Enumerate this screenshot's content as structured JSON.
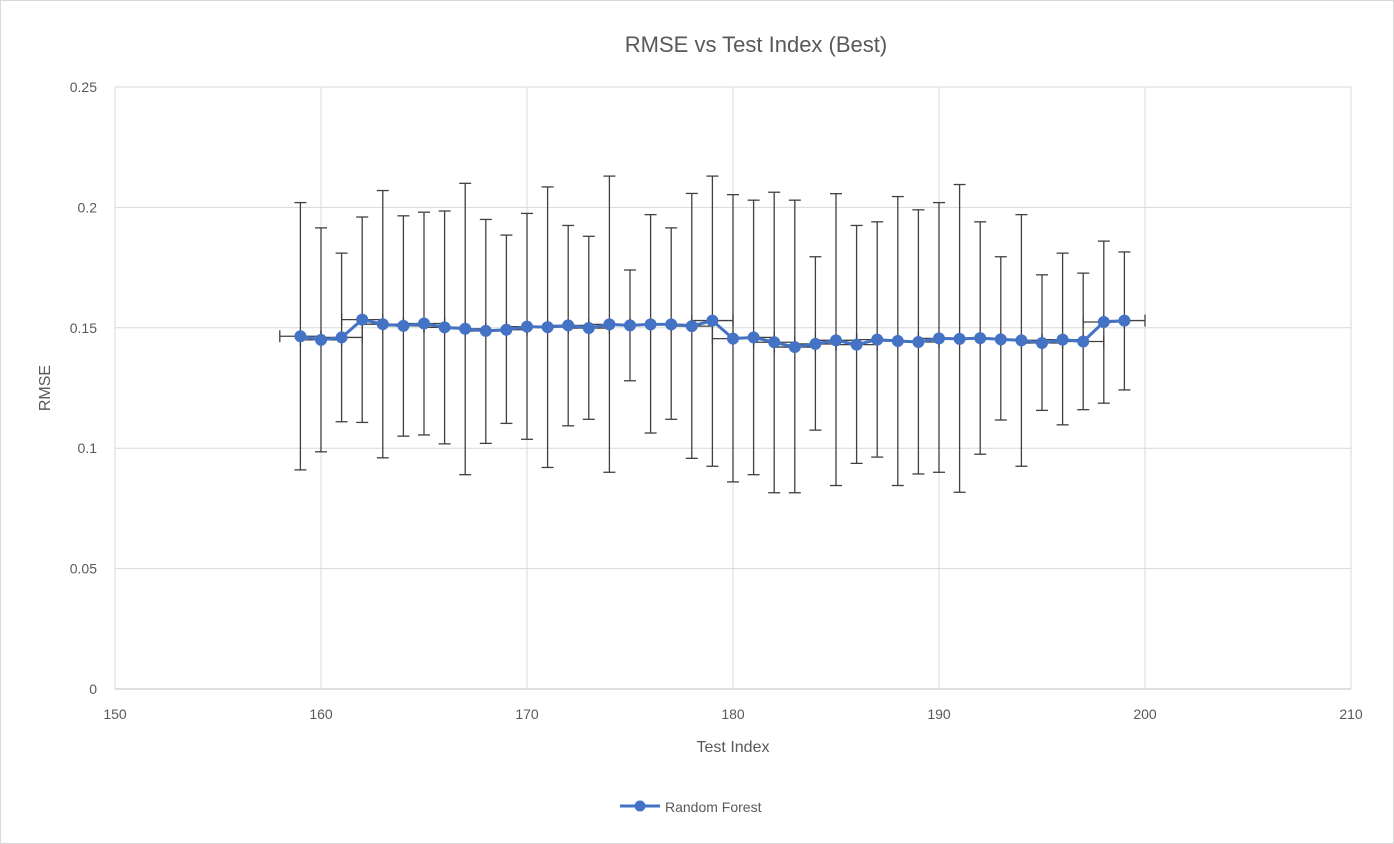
{
  "chart_data": {
    "type": "scatter",
    "title": "RMSE vs Test Index (Best)",
    "xlabel": "Test Index",
    "ylabel": "RMSE",
    "xlim": [
      150,
      210
    ],
    "ylim": [
      0,
      0.25
    ],
    "x_ticks": [
      150,
      160,
      170,
      180,
      190,
      200,
      210
    ],
    "x_tick_labels": [
      "150",
      "160",
      "170",
      "180",
      "190",
      "200",
      "210"
    ],
    "y_ticks": [
      0,
      0.05,
      0.1,
      0.15,
      0.2,
      0.25
    ],
    "y_tick_labels": [
      "0",
      "0.05",
      "0.1",
      "0.15",
      "0.2",
      "0.25"
    ],
    "grid": true,
    "legend_position": "bottom",
    "series": [
      {
        "name": "Random Forest",
        "color": "#4472c4",
        "marker": "circle",
        "line": true,
        "x": [
          159,
          160,
          161,
          162,
          163,
          164,
          165,
          166,
          167,
          168,
          169,
          170,
          171,
          172,
          173,
          174,
          175,
          176,
          177,
          178,
          179,
          180,
          181,
          182,
          183,
          184,
          185,
          186,
          187,
          188,
          189,
          190,
          191,
          192,
          193,
          194,
          195,
          196,
          197,
          198,
          199
        ],
        "y": [
          0.1465,
          0.145,
          0.146,
          0.1534,
          0.1515,
          0.1508,
          0.1518,
          0.1502,
          0.1496,
          0.1487,
          0.1492,
          0.1505,
          0.1503,
          0.151,
          0.1499,
          0.1514,
          0.151,
          0.1514,
          0.1514,
          0.1507,
          0.153,
          0.1455,
          0.146,
          0.144,
          0.142,
          0.1433,
          0.1448,
          0.143,
          0.1451,
          0.1445,
          0.1441,
          0.1456,
          0.1454,
          0.1457,
          0.1452,
          0.1448,
          0.1437,
          0.1451,
          0.1443,
          0.1524,
          0.153
        ],
        "y_err_high": [
          0.202,
          0.1915,
          0.181,
          0.196,
          0.207,
          0.1965,
          0.198,
          0.1985,
          0.21,
          0.195,
          0.1885,
          0.1975,
          0.2085,
          0.1925,
          0.188,
          0.213,
          0.174,
          0.197,
          0.1915,
          0.2058,
          0.213,
          0.2053,
          0.203,
          0.2063,
          0.203,
          0.1795,
          0.2057,
          0.1925,
          0.194,
          0.2045,
          0.199,
          0.202,
          0.2095,
          0.194,
          0.1795,
          0.197,
          0.172,
          0.181,
          0.1727,
          0.186,
          0.1815
        ],
        "y_err_low": [
          0.091,
          0.0985,
          0.111,
          0.1107,
          0.096,
          0.105,
          0.1055,
          0.1018,
          0.089,
          0.102,
          0.1103,
          0.1037,
          0.092,
          0.1093,
          0.112,
          0.09,
          0.128,
          0.1063,
          0.112,
          0.0958,
          0.0925,
          0.086,
          0.089,
          0.0815,
          0.0815,
          0.1075,
          0.0845,
          0.0937,
          0.0963,
          0.0845,
          0.0893,
          0.09,
          0.0817,
          0.0975,
          0.1117,
          0.0925,
          0.1157,
          0.1097,
          0.116,
          0.1187,
          0.1242
        ],
        "x_err": [
          1,
          1,
          1,
          1,
          1,
          1,
          1,
          1,
          1,
          1,
          1,
          1,
          1,
          1,
          1,
          1,
          1,
          1,
          1,
          1,
          1,
          1,
          1,
          1,
          1,
          1,
          1,
          1,
          1,
          1,
          1,
          1,
          1,
          1,
          1,
          1,
          1,
          1,
          1,
          1,
          1
        ]
      }
    ]
  }
}
